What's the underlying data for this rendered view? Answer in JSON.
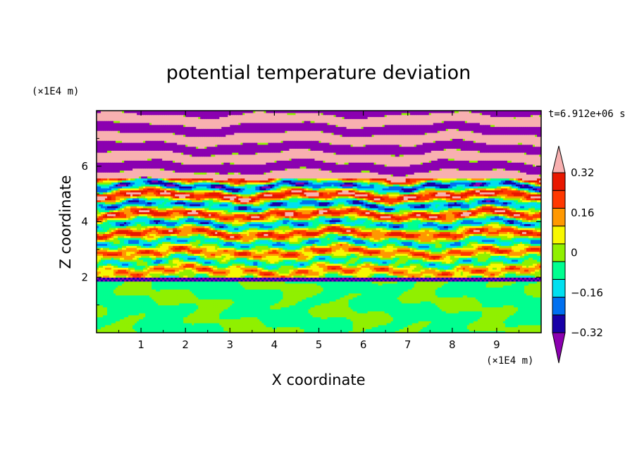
{
  "chart_data": {
    "type": "heatmap",
    "title": "potential temperature deviation",
    "xlabel": "X coordinate",
    "ylabel": "Z coordinate",
    "x_unit": "(×1E4 m)",
    "y_unit": "(×1E4 m)",
    "time_label": "t=6.912e+06 s",
    "xlim": [
      0,
      10
    ],
    "ylim": [
      0,
      8
    ],
    "x_ticks": [
      "1",
      "2",
      "3",
      "4",
      "5",
      "6",
      "7",
      "8",
      "9"
    ],
    "x_tick_values": [
      1,
      2,
      3,
      4,
      5,
      6,
      7,
      8,
      9
    ],
    "y_ticks": [
      "2",
      "4",
      "6"
    ],
    "y_tick_values": [
      2,
      4,
      6
    ],
    "colorbar": {
      "levels": [
        -0.4,
        -0.32,
        -0.24,
        -0.16,
        -0.08,
        0,
        0.08,
        0.16,
        0.24,
        0.32,
        0.4
      ],
      "colors_low_to_high": [
        "#8B00B0",
        "#1800A8",
        "#0070F0",
        "#00E0F0",
        "#00FF90",
        "#90F000",
        "#F8F800",
        "#FF9800",
        "#FF3800",
        "#E81800",
        "#F8B0B0"
      ],
      "labels": [
        "0.32",
        "0.16",
        "0",
        "−0.16",
        "−0.32"
      ],
      "label_values": [
        0.32,
        0.16,
        0,
        -0.16,
        -0.32
      ]
    },
    "lower_layer": {
      "z_range": [
        0,
        2
      ],
      "colors": [
        "#00FF90",
        "#90F000"
      ]
    }
  }
}
